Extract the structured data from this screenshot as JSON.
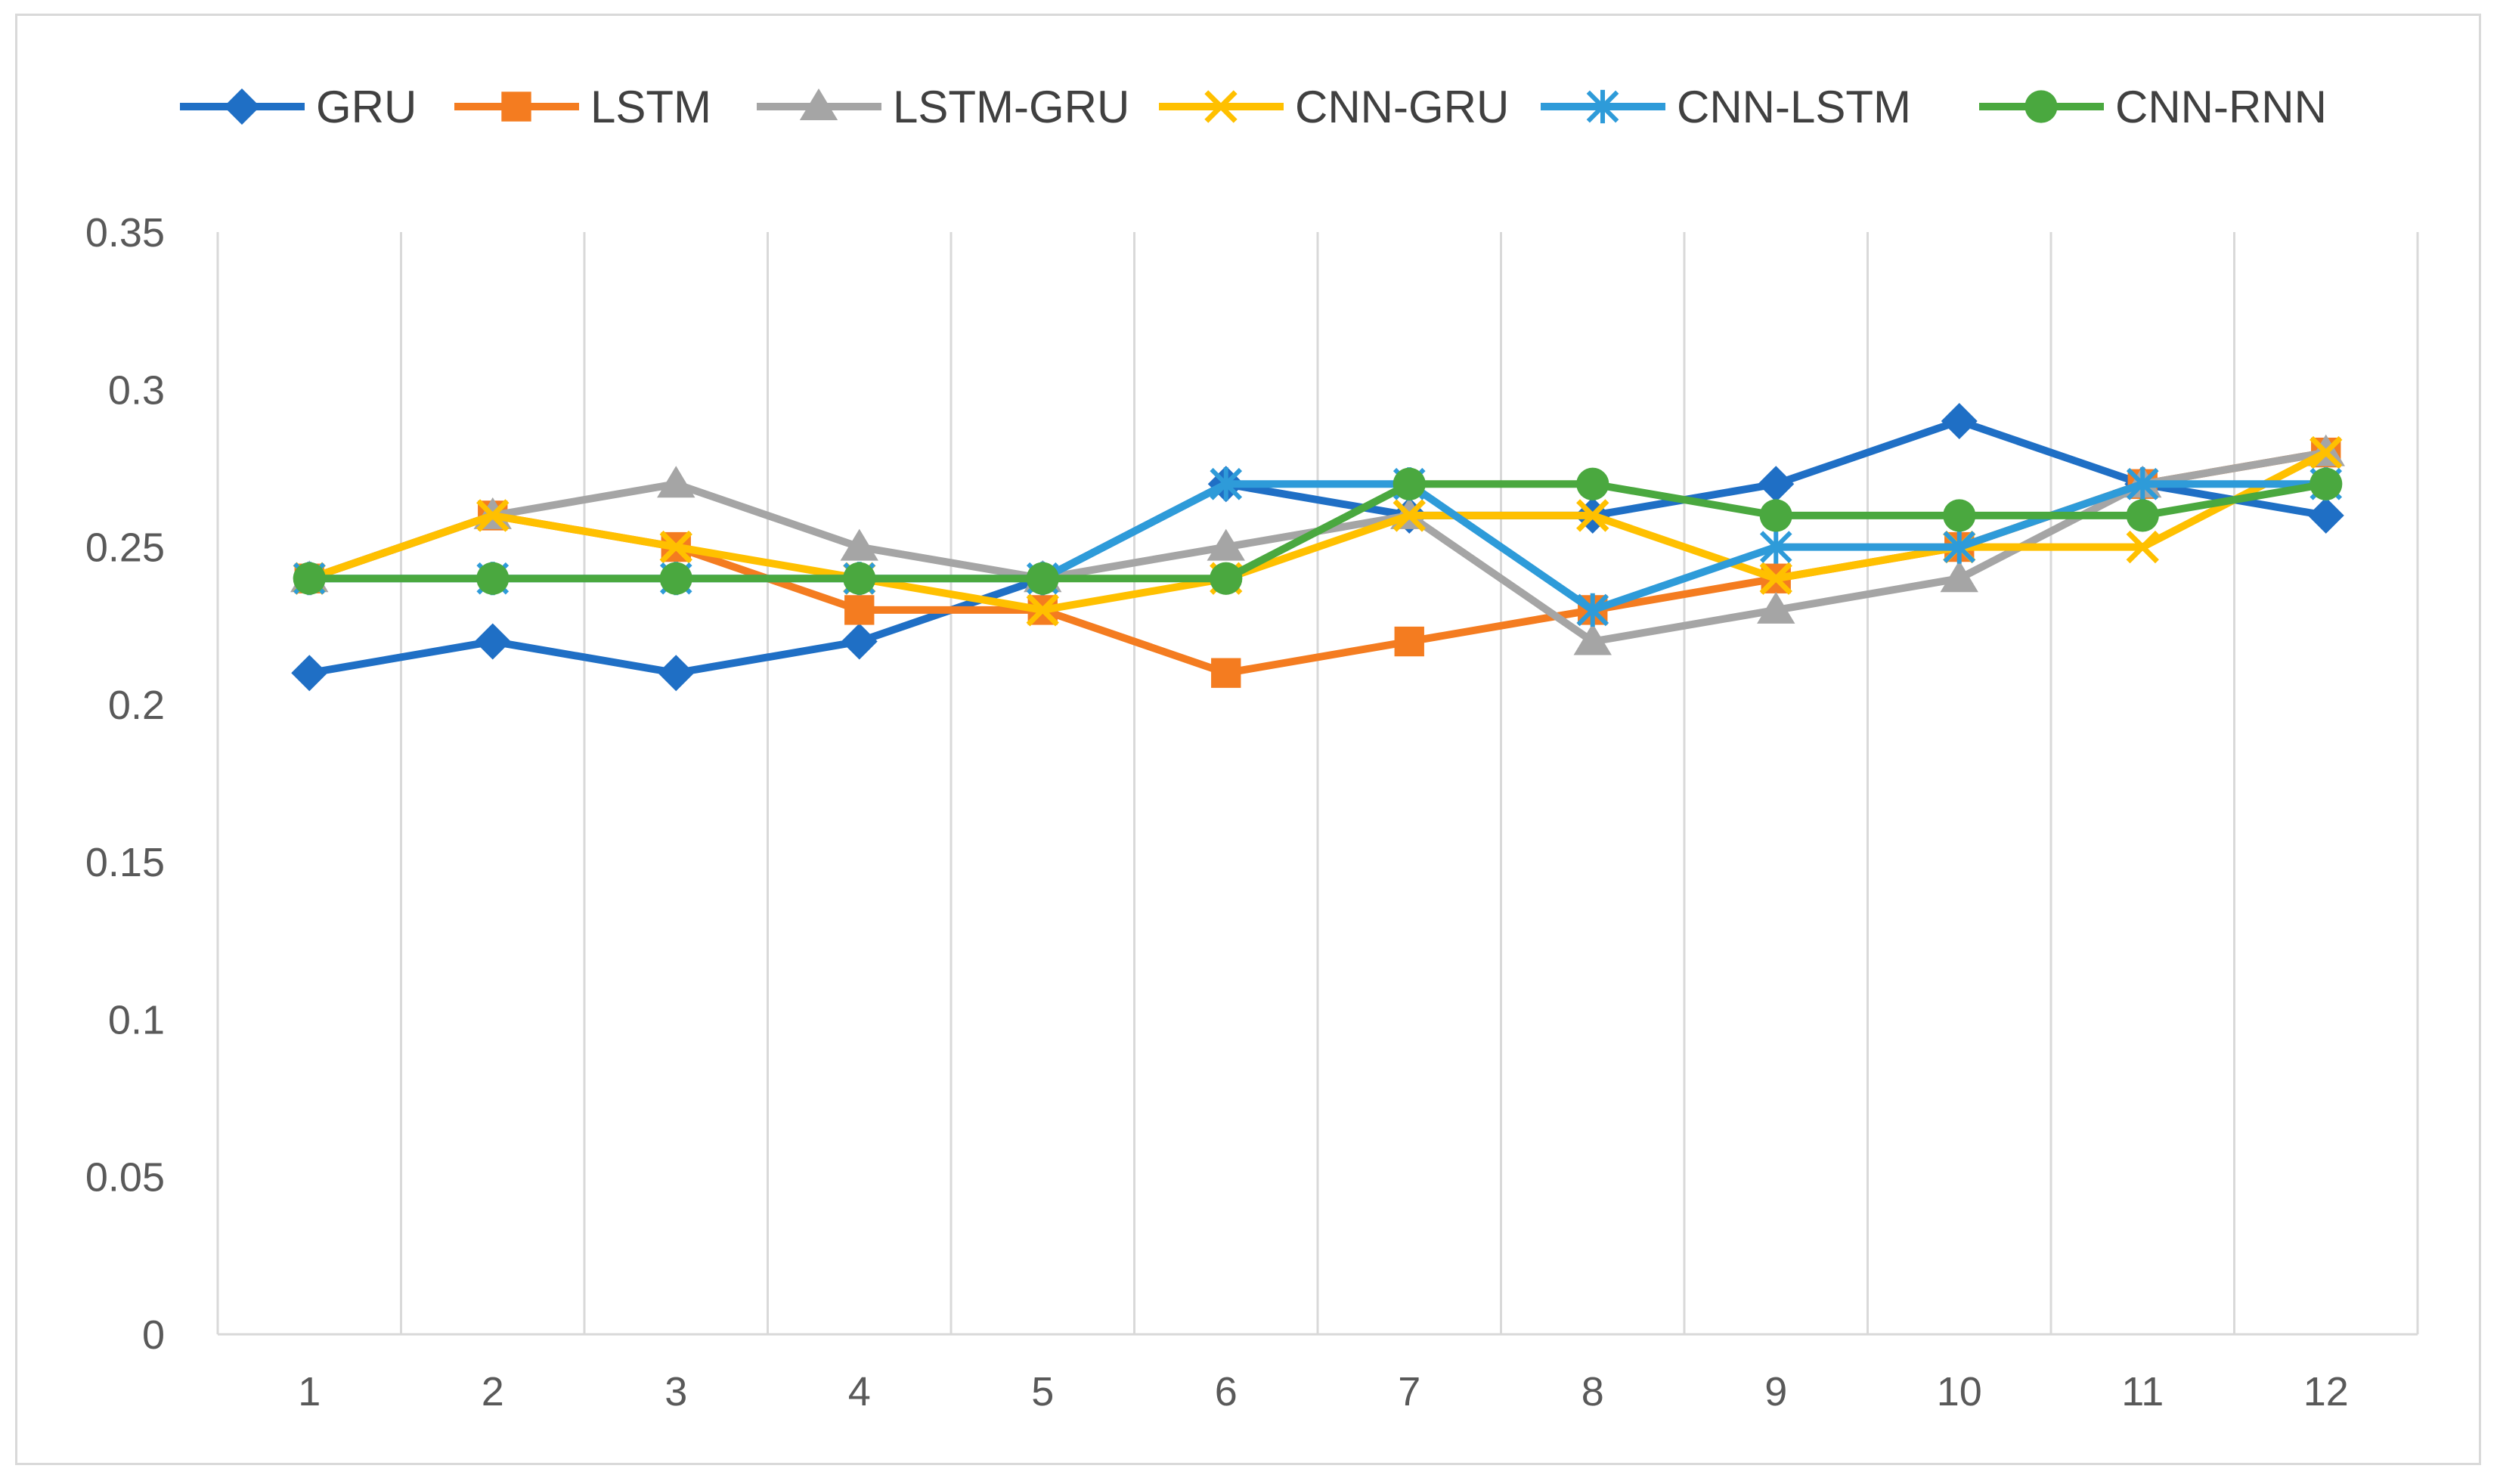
{
  "chart_data": {
    "type": "line",
    "title": "",
    "xlabel": "",
    "ylabel": "",
    "categories": [
      "1",
      "2",
      "3",
      "4",
      "5",
      "6",
      "7",
      "8",
      "9",
      "10",
      "11",
      "12"
    ],
    "ylim": [
      0,
      0.35
    ],
    "yticks": [
      "0",
      "0.05",
      "0.1",
      "0.15",
      "0.2",
      "0.25",
      "0.3",
      "0.35"
    ],
    "grid": "vertical",
    "legend_position": "top",
    "series": [
      {
        "name": "GRU",
        "marker": "diamond",
        "color": "#1f6fc5",
        "values": [
          0.21,
          0.22,
          0.21,
          0.22,
          0.24,
          0.27,
          0.26,
          0.26,
          0.27,
          0.29,
          0.27,
          0.26
        ]
      },
      {
        "name": "LSTM",
        "marker": "square",
        "color": "#f47c20",
        "values": [
          0.24,
          0.26,
          0.25,
          0.23,
          0.23,
          0.21,
          0.22,
          0.23,
          0.24,
          0.25,
          0.27,
          0.28
        ]
      },
      {
        "name": "LSTM-GRU",
        "marker": "triangle",
        "color": "#a5a5a5",
        "values": [
          0.24,
          0.26,
          0.27,
          0.25,
          0.24,
          0.25,
          0.26,
          0.22,
          0.23,
          0.24,
          0.27,
          0.28
        ]
      },
      {
        "name": "CNN-GRU",
        "marker": "x",
        "color": "#ffc000",
        "values": [
          0.24,
          0.26,
          0.25,
          0.24,
          0.23,
          0.24,
          0.26,
          0.26,
          0.24,
          0.25,
          0.25,
          0.28
        ]
      },
      {
        "name": "CNN-LSTM",
        "marker": "star",
        "color": "#2e9bd9",
        "values": [
          0.24,
          0.24,
          0.24,
          0.24,
          0.24,
          0.27,
          0.27,
          0.23,
          0.25,
          0.25,
          0.27,
          0.27
        ]
      },
      {
        "name": "CNN-RNN",
        "marker": "circle",
        "color": "#4aa83f",
        "values": [
          0.24,
          0.24,
          0.24,
          0.24,
          0.24,
          0.24,
          0.27,
          0.27,
          0.26,
          0.26,
          0.26,
          0.27
        ]
      }
    ]
  }
}
